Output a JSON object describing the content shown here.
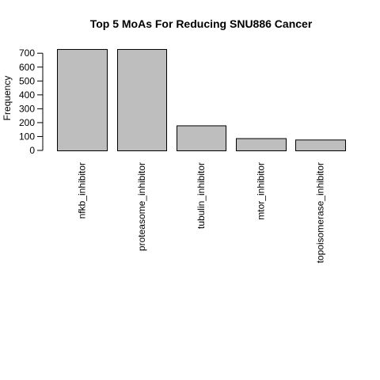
{
  "chart_data": {
    "type": "bar",
    "title": "Top 5 MoAs For Reducing SNU886 Cancer",
    "xlabel": "",
    "ylabel": "Frequency",
    "categories": [
      "nfkb_inhibitor",
      "proteasome_inhibitor",
      "tubulin_inhibitor",
      "mtor_inhibitor",
      "topoisomerase_inhibitor"
    ],
    "values": [
      730,
      730,
      180,
      88,
      78
    ],
    "yticks": [
      0,
      100,
      200,
      300,
      400,
      500,
      600,
      700
    ],
    "ylim": [
      0,
      730
    ],
    "grid": false,
    "legend": "none",
    "colors": {
      "bar_fill": "#bebebe",
      "bar_stroke": "#000000",
      "axis": "#000000"
    }
  }
}
